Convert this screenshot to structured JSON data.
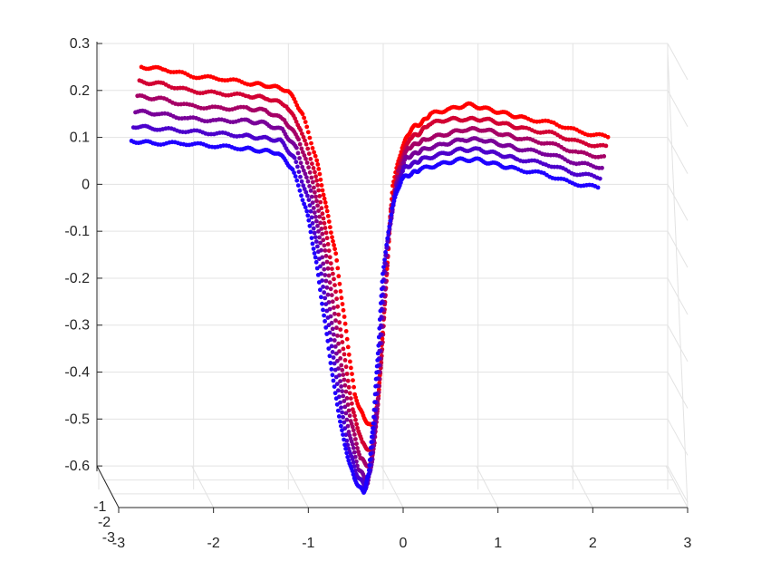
{
  "chart_data": {
    "type": "scatter",
    "projection": "3d",
    "title": "",
    "xlabel": "",
    "ylabel": "",
    "zlabel": "",
    "grid": true,
    "xlim": [
      -3,
      3
    ],
    "ylim": [
      -3,
      1
    ],
    "zlim": [
      -0.65,
      0.3
    ],
    "x_ticks": [
      "-3",
      "-2",
      "-1",
      "0",
      "1",
      "2",
      "3"
    ],
    "y_ticks": [
      "-3",
      "-2",
      "-1"
    ],
    "z_ticks": [
      "0.3",
      "0.2",
      "0.1",
      "0",
      "-0.1",
      "-0.2",
      "-0.3",
      "-0.4",
      "-0.5",
      "-0.6"
    ],
    "color_gradient": {
      "start": "#ff0000",
      "end": "#1f00ff"
    },
    "series": [
      {
        "x": [
          -2.55,
          -2.3,
          -2.0,
          -1.7,
          -1.4,
          -1.2,
          -1.0,
          -0.85,
          -0.7,
          -0.6,
          -0.5,
          -0.4,
          -0.3,
          -0.2,
          -0.1,
          -0.05,
          0.0,
          0.05,
          0.1,
          0.2,
          0.3,
          0.4,
          0.5,
          0.7,
          0.9,
          1.1,
          1.3,
          1.5,
          1.8,
          2.1,
          2.4
        ],
        "z": [
          0.25,
          0.245,
          0.23,
          0.225,
          0.215,
          0.21,
          0.2,
          0.15,
          0.05,
          -0.05,
          -0.15,
          -0.3,
          -0.45,
          -0.5,
          -0.52,
          -0.45,
          -0.3,
          -0.15,
          0.0,
          0.08,
          0.12,
          0.13,
          0.15,
          0.16,
          0.17,
          0.16,
          0.15,
          0.14,
          0.13,
          0.11,
          0.1
        ]
      },
      {
        "x": [
          -2.55,
          -2.3,
          -2.0,
          -1.7,
          -1.4,
          -1.2,
          -1.0,
          -0.85,
          -0.7,
          -0.6,
          -0.5,
          -0.4,
          -0.3,
          -0.2,
          -0.1,
          -0.05,
          0.0,
          0.05,
          0.1,
          0.2,
          0.3,
          0.4,
          0.5,
          0.7,
          0.9,
          1.1,
          1.3,
          1.5,
          1.8,
          2.1,
          2.4
        ],
        "z": [
          0.22,
          0.215,
          0.2,
          0.195,
          0.19,
          0.185,
          0.17,
          0.12,
          0.03,
          -0.08,
          -0.2,
          -0.35,
          -0.48,
          -0.55,
          -0.57,
          -0.5,
          -0.38,
          -0.22,
          -0.05,
          0.05,
          0.1,
          0.11,
          0.13,
          0.14,
          0.14,
          0.14,
          0.13,
          0.12,
          0.11,
          0.09,
          0.08
        ]
      },
      {
        "x": [
          -2.55,
          -2.3,
          -2.0,
          -1.7,
          -1.4,
          -1.2,
          -1.0,
          -0.85,
          -0.7,
          -0.6,
          -0.5,
          -0.4,
          -0.3,
          -0.2,
          -0.1,
          -0.05,
          0.0,
          0.05,
          0.1,
          0.2,
          0.3,
          0.4,
          0.5,
          0.7,
          0.9,
          1.1,
          1.3,
          1.5,
          1.8,
          2.1,
          2.4
        ],
        "z": [
          0.19,
          0.185,
          0.17,
          0.165,
          0.165,
          0.16,
          0.14,
          0.1,
          0.01,
          -0.1,
          -0.23,
          -0.38,
          -0.5,
          -0.58,
          -0.6,
          -0.55,
          -0.43,
          -0.27,
          -0.1,
          0.03,
          0.08,
          0.09,
          0.1,
          0.11,
          0.12,
          0.12,
          0.11,
          0.1,
          0.09,
          0.07,
          0.06
        ]
      },
      {
        "x": [
          -2.55,
          -2.3,
          -2.0,
          -1.7,
          -1.4,
          -1.2,
          -1.0,
          -0.85,
          -0.7,
          -0.6,
          -0.5,
          -0.4,
          -0.3,
          -0.2,
          -0.1,
          -0.05,
          0.0,
          0.05,
          0.1,
          0.2,
          0.3,
          0.4,
          0.5,
          0.7,
          0.9,
          1.1,
          1.3,
          1.5,
          1.8,
          2.1,
          2.4
        ],
        "z": [
          0.16,
          0.155,
          0.145,
          0.14,
          0.14,
          0.135,
          0.12,
          0.08,
          -0.01,
          -0.12,
          -0.26,
          -0.4,
          -0.52,
          -0.6,
          -0.63,
          -0.58,
          -0.46,
          -0.3,
          -0.13,
          0.0,
          0.06,
          0.07,
          0.08,
          0.09,
          0.1,
          0.1,
          0.09,
          0.08,
          0.07,
          0.05,
          0.04
        ]
      },
      {
        "x": [
          -2.55,
          -2.3,
          -2.0,
          -1.7,
          -1.4,
          -1.2,
          -1.0,
          -0.85,
          -0.7,
          -0.6,
          -0.5,
          -0.4,
          -0.3,
          -0.2,
          -0.1,
          -0.05,
          0.0,
          0.05,
          0.1,
          0.2,
          0.3,
          0.4,
          0.5,
          0.7,
          0.9,
          1.1,
          1.3,
          1.5,
          1.8,
          2.1,
          2.4
        ],
        "z": [
          0.13,
          0.125,
          0.12,
          0.115,
          0.11,
          0.105,
          0.1,
          0.06,
          -0.03,
          -0.14,
          -0.28,
          -0.42,
          -0.54,
          -0.61,
          -0.64,
          -0.6,
          -0.49,
          -0.33,
          -0.16,
          -0.02,
          0.04,
          0.05,
          0.06,
          0.07,
          0.08,
          0.08,
          0.07,
          0.06,
          0.05,
          0.03,
          0.02
        ]
      },
      {
        "x": [
          -2.55,
          -2.3,
          -2.0,
          -1.7,
          -1.4,
          -1.2,
          -1.0,
          -0.85,
          -0.7,
          -0.6,
          -0.5,
          -0.4,
          -0.3,
          -0.2,
          -0.1,
          -0.05,
          0.0,
          0.05,
          0.1,
          0.2,
          0.3,
          0.4,
          0.5,
          0.7,
          0.9,
          1.1,
          1.3,
          1.5,
          1.8,
          2.1,
          2.4
        ],
        "z": [
          0.1,
          0.095,
          0.095,
          0.09,
          0.085,
          0.08,
          0.075,
          0.04,
          -0.05,
          -0.16,
          -0.3,
          -0.44,
          -0.55,
          -0.62,
          -0.65,
          -0.61,
          -0.5,
          -0.35,
          -0.18,
          -0.04,
          0.02,
          0.03,
          0.04,
          0.05,
          0.06,
          0.06,
          0.05,
          0.04,
          0.03,
          0.01,
          0.0
        ]
      }
    ]
  }
}
